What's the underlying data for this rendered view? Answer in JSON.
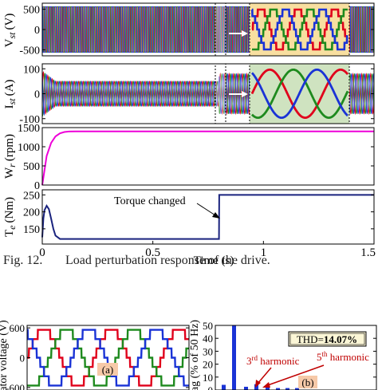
{
  "figure_caption": {
    "label": "Fig. 12.",
    "text": "Load perturbation response of the drive."
  },
  "chart_data": [
    {
      "type": "line",
      "panel": "voltage",
      "ylabel": "Vst (V)",
      "ylabel_main": "V",
      "ylabel_sub": "st",
      "ylabel_unit": "(V)",
      "yticks": [
        500,
        0,
        -500
      ],
      "ylim": [
        -650,
        650
      ],
      "xlim": [
        0,
        1.5
      ],
      "series": [
        {
          "color": "#e0001b",
          "phase_deg": 0
        },
        {
          "color": "#1e8a1e",
          "phase_deg": 120
        },
        {
          "color": "#1a33d6",
          "phase_deg": 240
        }
      ],
      "amplitude": 560,
      "frequency_hz": 50,
      "zoom_inset": {
        "range": [
          0.77,
          0.82
        ],
        "background": "#f8dfa0"
      }
    },
    {
      "type": "line",
      "panel": "current",
      "ylabel": "Ist (A)",
      "ylabel_main": "I",
      "ylabel_sub": "st",
      "ylabel_unit": "(A)",
      "yticks": [
        100,
        0,
        -100
      ],
      "ylim": [
        -120,
        120
      ],
      "xlim": [
        0,
        1.5
      ],
      "series": [
        {
          "color": "#e0001b",
          "phase_deg": 0
        },
        {
          "color": "#1e8a1e",
          "phase_deg": 120
        },
        {
          "color": "#1a33d6",
          "phase_deg": 240
        }
      ],
      "amplitude_start": 90,
      "amplitude_before": 50,
      "amplitude_after": 80,
      "frequency_hz": 50,
      "zoom_inset": {
        "range": [
          0.77,
          0.82
        ],
        "background": "#cfe3c0"
      }
    },
    {
      "type": "line",
      "panel": "speed",
      "ylabel": "Wr (rpm)",
      "ylabel_main": "W",
      "ylabel_sub": "r",
      "ylabel_unit": "(rpm)",
      "yticks": [
        1500,
        1000,
        500,
        0
      ],
      "ylim": [
        0,
        1500
      ],
      "xlim": [
        0,
        1.5
      ],
      "series": [
        {
          "color": "#ee00d8",
          "x": [
            0,
            0.02,
            0.04,
            0.06,
            0.08,
            0.1,
            0.12,
            0.15,
            0.2,
            0.4,
            0.8,
            1.2,
            1.5
          ],
          "y": [
            0,
            760,
            1100,
            1270,
            1350,
            1385,
            1398,
            1400,
            1400,
            1400,
            1400,
            1400,
            1400
          ]
        }
      ]
    },
    {
      "type": "line",
      "panel": "torque",
      "ylabel": "Te (Nm)",
      "ylabel_main": "T",
      "ylabel_sub": "e",
      "ylabel_unit": "(Nm)",
      "yticks": [
        250,
        200,
        150
      ],
      "ylim": [
        105,
        265
      ],
      "xlim": [
        0,
        1.5
      ],
      "xticks": [
        0,
        0.5,
        1,
        1.5
      ],
      "xtick_labels": [
        "0",
        "0.5",
        "1",
        "1.5"
      ],
      "xlabel": "Time (s)",
      "series": [
        {
          "color": "#1a237e",
          "x": [
            0,
            0.005,
            0.01,
            0.02,
            0.03,
            0.04,
            0.05,
            0.06,
            0.08,
            0.1,
            0.15,
            0.4,
            0.799,
            0.8,
            1.0,
            1.5
          ],
          "y": [
            125,
            180,
            205,
            218,
            208,
            180,
            150,
            130,
            120,
            120,
            120,
            120,
            120,
            250,
            250,
            250
          ]
        }
      ],
      "annotation": {
        "text": "Torque changed",
        "x": 0.8,
        "y": 235
      }
    },
    {
      "type": "line",
      "panel": "stator-voltage-zoom",
      "ylabel": "ator voltage (V)",
      "yticks": [
        600,
        0,
        -600
      ],
      "ylim": [
        -650,
        650
      ],
      "series": [
        {
          "color": "#e0001b"
        },
        {
          "color": "#1e8a1e"
        },
        {
          "color": "#1a33d6"
        }
      ],
      "label": "(a)"
    },
    {
      "type": "bar",
      "panel": "harmonic-spectrum",
      "ylabel": "ag (% of 50 Hz)",
      "yticks": [
        50,
        40,
        30,
        20,
        10,
        0
      ],
      "ylim": [
        0,
        50
      ],
      "values": [
        4,
        50,
        2.5,
        4.5,
        2.5,
        1.5,
        1.5,
        1.5
      ],
      "color": "#1a33d6",
      "thd_label": "THD=",
      "thd_value": "14.07%",
      "annotations": [
        {
          "prefix": "3",
          "sup": "rd",
          "text": " harmonic"
        },
        {
          "prefix": "5",
          "sup": "th",
          "text": " harmonic"
        }
      ],
      "label": "(b)"
    }
  ]
}
